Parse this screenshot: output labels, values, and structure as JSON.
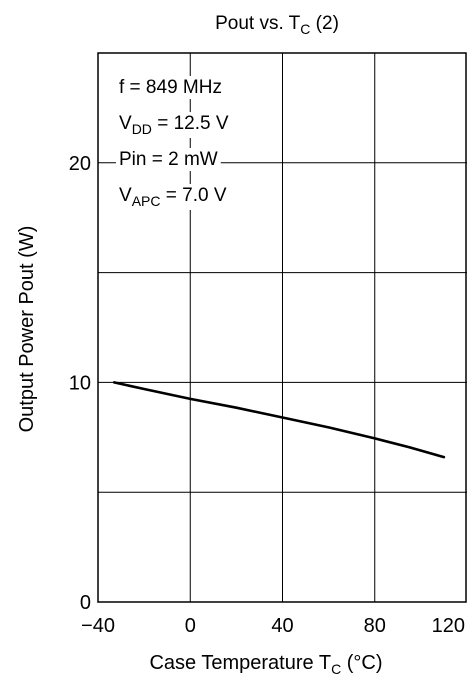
{
  "chart_data": {
    "type": "line",
    "title": {
      "main": "Pout vs. T",
      "sub": "C",
      "suffix": " (2)"
    },
    "xlabel": {
      "main": "Case Temperature  T",
      "sub": "C",
      "suffix": "  (°C)"
    },
    "ylabel": "Output Power  Pout  (W)",
    "xlim": [
      -40,
      120
    ],
    "ylim": [
      0,
      25
    ],
    "x_grid": [
      -40,
      0,
      40,
      80,
      120
    ],
    "y_grid": [
      0,
      5,
      10,
      15,
      20,
      25
    ],
    "x_ticks": [
      "−40",
      "0",
      "40",
      "80",
      "120"
    ],
    "x_tick_values": [
      -40,
      0,
      40,
      80,
      120
    ],
    "y_ticks": [
      "0",
      "10",
      "20"
    ],
    "y_tick_values": [
      0,
      10,
      20
    ],
    "grid": true,
    "series": [
      {
        "x": [
          -33,
          -20,
          0,
          20,
          40,
          60,
          80,
          95,
          110
        ],
        "y": [
          10.0,
          9.7,
          9.25,
          8.85,
          8.4,
          7.95,
          7.45,
          7.05,
          6.6
        ]
      }
    ],
    "annotations": [
      {
        "main": "f = 849 MHz",
        "sub": "",
        "suffix": ""
      },
      {
        "main": "V",
        "sub": "DD",
        "suffix": " = 12.5 V"
      },
      {
        "main": "Pin = 2 mW",
        "sub": "",
        "suffix": ""
      },
      {
        "main": "V",
        "sub": "APC",
        "suffix": " = 7.0 V"
      }
    ]
  }
}
